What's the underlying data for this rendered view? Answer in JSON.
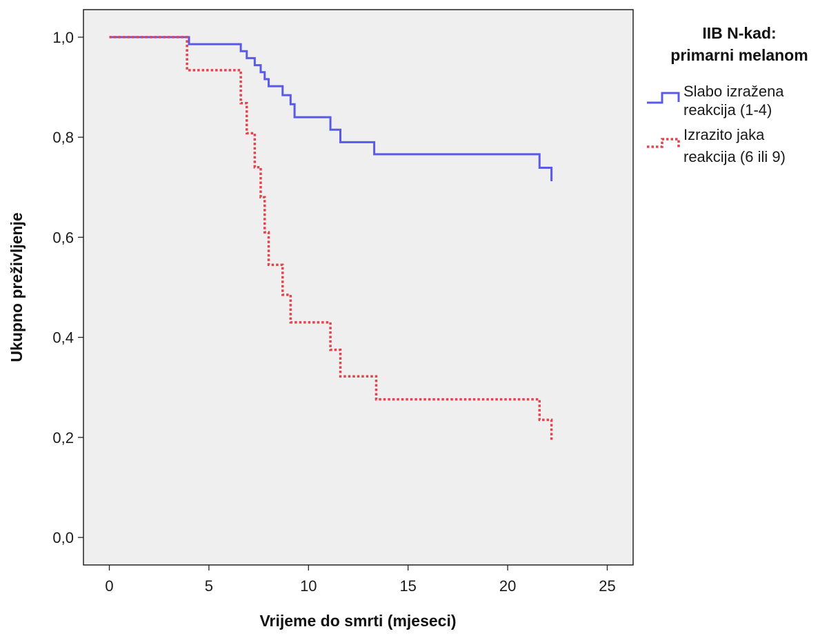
{
  "chart_data": {
    "type": "line",
    "step": true,
    "xlabel": "Vrijeme do smrti (mjeseci)",
    "ylabel": "Ukupno preživljenje",
    "xlim": [
      -1.3,
      26.3
    ],
    "ylim": [
      -0.055,
      1.055
    ],
    "xticks": [
      0,
      5,
      10,
      15,
      20,
      25
    ],
    "xtick_labels": [
      "0",
      "5",
      "10",
      "15",
      "20",
      "25"
    ],
    "yticks": [
      0.0,
      0.2,
      0.4,
      0.6,
      0.8,
      1.0
    ],
    "ytick_labels": [
      "0,0",
      "0,2",
      "0,4",
      "0,6",
      "0,8",
      "1,0"
    ],
    "grid": false,
    "legend_position": "right",
    "legend_title": [
      "IIB N-kad:",
      "primarni melanom"
    ],
    "colors": {
      "plot_bg": "#efefef",
      "series_1": "#5a5ae8",
      "series_2": "#e0454e"
    },
    "series": [
      {
        "name": "Slabo izražena reakcija (1-4)",
        "legend_lines": [
          "Slabo izražena",
          "reakcija (1-4)"
        ],
        "style": "solid",
        "x": [
          0,
          4.0,
          6.6,
          6.9,
          7.3,
          7.6,
          7.8,
          8.0,
          8.7,
          9.1,
          9.3,
          11.1,
          11.6,
          13.3,
          21.6,
          22.2
        ],
        "y": [
          1.0,
          0.986,
          0.972,
          0.958,
          0.944,
          0.93,
          0.916,
          0.902,
          0.884,
          0.866,
          0.84,
          0.815,
          0.79,
          0.766,
          0.739,
          0.712
        ]
      },
      {
        "name": "Izrazito jaka reakcija (6 ili 9)",
        "legend_lines": [
          "Izrazito jaka",
          "reakcija (6 ili 9)"
        ],
        "style": "dotted",
        "x": [
          0,
          3.9,
          6.6,
          6.9,
          7.3,
          7.6,
          7.8,
          8.0,
          8.7,
          9.1,
          9.3,
          11.1,
          11.6,
          13.4,
          21.6,
          22.2
        ],
        "y": [
          1.0,
          0.934,
          0.868,
          0.808,
          0.74,
          0.68,
          0.61,
          0.545,
          0.485,
          0.43,
          0.43,
          0.375,
          0.322,
          0.276,
          0.235,
          0.195
        ]
      }
    ]
  }
}
